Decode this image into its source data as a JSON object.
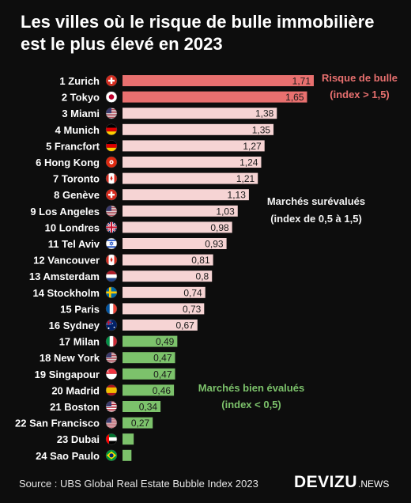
{
  "header": {
    "title_line1": "Les villes où le risque de bulle immobilière",
    "title_line2": "est le plus élevé en 2023"
  },
  "chart_data": {
    "type": "bar",
    "orientation": "horizontal",
    "categories": [
      "1 Zurich",
      "2 Tokyo",
      "3 Miami",
      "4 Munich",
      "5 Francfort",
      "6 Hong Kong",
      "7 Toronto",
      "8 Genève",
      "9 Los Angeles",
      "10 Londres",
      "11 Tel Aviv",
      "12 Vancouver",
      "13 Amsterdam",
      "14 Stockholm",
      "15 Paris",
      "16 Sydney",
      "17 Milan",
      "18 New York",
      "19 Singapour",
      "20 Madrid",
      "21 Boston",
      "22 San Francisco",
      "23 Dubai",
      "24 Sao Paulo"
    ],
    "values": [
      1.71,
      1.65,
      1.38,
      1.35,
      1.27,
      1.24,
      1.21,
      1.13,
      1.03,
      0.98,
      0.93,
      0.81,
      0.8,
      0.74,
      0.73,
      0.67,
      0.49,
      0.47,
      0.47,
      0.46,
      0.34,
      0.27,
      0.1,
      0.08
    ],
    "value_labels": [
      "1,71",
      "1,65",
      "1,38",
      "1,35",
      "1,27",
      "1,24",
      "1,21",
      "1,13",
      "1,03",
      "0,98",
      "0,93",
      "0,81",
      "0,8",
      "0,74",
      "0,73",
      "0,67",
      "0,49",
      "0,47",
      "0,47",
      "0,46",
      "0,34",
      "0,27",
      "",
      ""
    ],
    "flags": [
      "switzerland-flag",
      "japan-flag",
      "usa-flag",
      "germany-flag",
      "germany-flag",
      "hong-kong-flag",
      "canada-flag",
      "switzerland-flag",
      "usa-flag",
      "uk-flag",
      "israel-flag",
      "canada-flag",
      "netherlands-flag",
      "sweden-flag",
      "france-flag",
      "australia-flag",
      "italy-flag",
      "usa-flag",
      "singapore-flag",
      "spain-flag",
      "usa-flag",
      "usa-flag",
      "uae-flag",
      "brazil-flag"
    ],
    "categories_group": [
      "bubble",
      "bubble",
      "over",
      "over",
      "over",
      "over",
      "over",
      "over",
      "over",
      "over",
      "over",
      "over",
      "over",
      "over",
      "over",
      "over",
      "fair",
      "fair",
      "fair",
      "fair",
      "fair",
      "fair",
      "fair",
      "fair"
    ],
    "colors": {
      "bubble": "#e8706f",
      "over": "#f6d4d4",
      "fair": "#7cc26b",
      "bubble_text": "#e8706f",
      "over_text": "#f2f2f2",
      "fair_text": "#7cc26b"
    },
    "annotations": [
      {
        "id": "bubble",
        "line1": "Risque de bulle",
        "line2": "(index > 1,5)"
      },
      {
        "id": "over",
        "line1": "Marchés surévalués",
        "line2": "(index de 0,5 à 1,5)"
      },
      {
        "id": "fair",
        "line1": "Marchés bien évalués",
        "line2": "(index < 0,5)"
      }
    ],
    "xlim": [
      0,
      1.71
    ],
    "grid": false,
    "legend": "none"
  },
  "footer": {
    "source": "Source : UBS Global Real Estate Bubble Index 2023",
    "brand": "DEVIZU",
    "brand_suffix": ".NEWS"
  }
}
